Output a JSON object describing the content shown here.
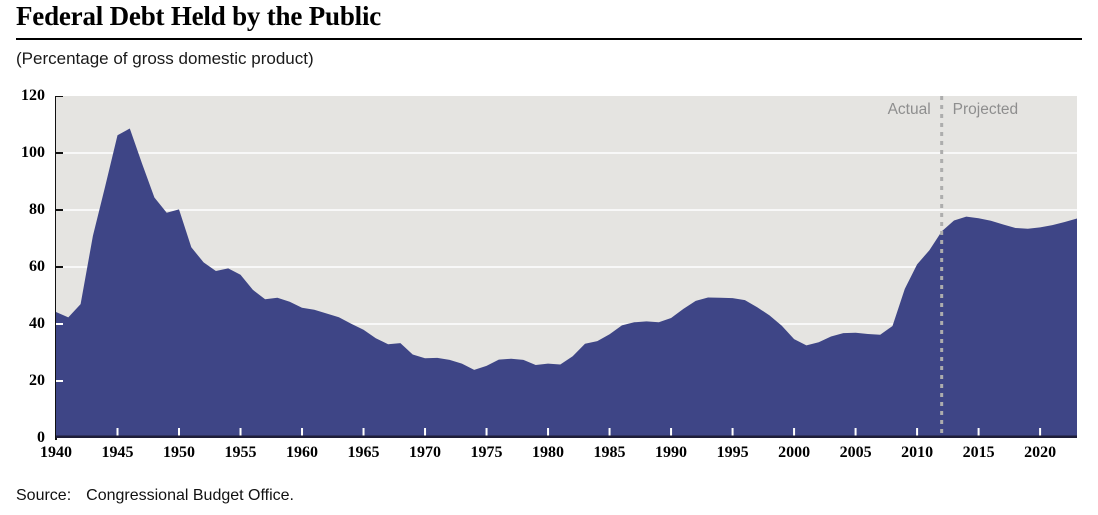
{
  "chart_data": {
    "type": "area",
    "title": "Federal Debt Held by the Public",
    "subtitle": "(Percentage of gross domestic product)",
    "source_label": "Source:",
    "source_text": "Congressional Budget Office.",
    "series_name": "Federal debt held by the public (% of GDP)",
    "xlim": [
      1940,
      2023
    ],
    "ylim": [
      0,
      120
    ],
    "y_ticks": [
      0,
      20,
      40,
      60,
      80,
      100,
      120
    ],
    "x_ticks": [
      1940,
      1945,
      1950,
      1955,
      1960,
      1965,
      1970,
      1975,
      1980,
      1985,
      1990,
      1995,
      2000,
      2005,
      2010,
      2015,
      2020
    ],
    "grid": true,
    "divider_year": 2012,
    "annotations": {
      "actual": "Actual",
      "projected": "Projected"
    },
    "x": [
      1940,
      1941,
      1942,
      1943,
      1944,
      1945,
      1946,
      1947,
      1948,
      1949,
      1950,
      1951,
      1952,
      1953,
      1954,
      1955,
      1956,
      1957,
      1958,
      1959,
      1960,
      1961,
      1962,
      1963,
      1964,
      1965,
      1966,
      1967,
      1968,
      1969,
      1970,
      1971,
      1972,
      1973,
      1974,
      1975,
      1976,
      1977,
      1978,
      1979,
      1980,
      1981,
      1982,
      1983,
      1984,
      1985,
      1986,
      1987,
      1988,
      1989,
      1990,
      1991,
      1992,
      1993,
      1994,
      1995,
      1996,
      1997,
      1998,
      1999,
      2000,
      2001,
      2002,
      2003,
      2004,
      2005,
      2006,
      2007,
      2008,
      2009,
      2010,
      2011,
      2012,
      2013,
      2014,
      2015,
      2016,
      2017,
      2018,
      2019,
      2020,
      2021,
      2022,
      2023
    ],
    "values": [
      44.2,
      42.3,
      47.0,
      70.9,
      88.3,
      106.2,
      108.6,
      96.2,
      84.4,
      79.0,
      80.2,
      66.9,
      61.6,
      58.6,
      59.5,
      57.3,
      52.0,
      48.7,
      49.2,
      47.8,
      45.7,
      45.0,
      43.7,
      42.4,
      40.1,
      38.0,
      35.0,
      32.9,
      33.3,
      29.3,
      28.0,
      28.1,
      27.4,
      26.1,
      23.9,
      25.3,
      27.5,
      27.8,
      27.4,
      25.6,
      26.1,
      25.8,
      28.7,
      33.1,
      34.0,
      36.4,
      39.5,
      40.6,
      40.9,
      40.6,
      42.1,
      45.3,
      48.1,
      49.3,
      49.2,
      49.1,
      48.4,
      45.9,
      43.0,
      39.4,
      34.7,
      32.5,
      33.6,
      35.6,
      36.8,
      36.9,
      36.5,
      36.2,
      39.3,
      52.3,
      60.9,
      65.9,
      72.5,
      76.3,
      77.7,
      77.1,
      76.2,
      74.9,
      73.7,
      73.4,
      73.9,
      74.7,
      75.8,
      77.0
    ],
    "colors": {
      "area": "#3e4586",
      "plot_bg": "#e5e4e1",
      "grid": "#ffffff",
      "baseline": "#1d1d38",
      "divider": "#adadad",
      "annotation_text": "#8e8e8e",
      "axis": "#111111"
    }
  }
}
